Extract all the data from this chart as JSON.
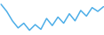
{
  "x": [
    0,
    1,
    2,
    3,
    4,
    5,
    6,
    7,
    8,
    9,
    10,
    11,
    12,
    13,
    14,
    15,
    16,
    17,
    18
  ],
  "y": [
    16.5,
    15.0,
    13.0,
    11.5,
    12.5,
    11.0,
    12.2,
    11.2,
    13.5,
    12.0,
    13.8,
    12.5,
    14.5,
    13.0,
    15.2,
    14.0,
    15.8,
    15.0,
    16.0
  ],
  "line_color": "#4daee8",
  "linewidth": 1.1,
  "background_color": "#ffffff",
  "ylim_min": 10.0,
  "ylim_max": 17.5
}
